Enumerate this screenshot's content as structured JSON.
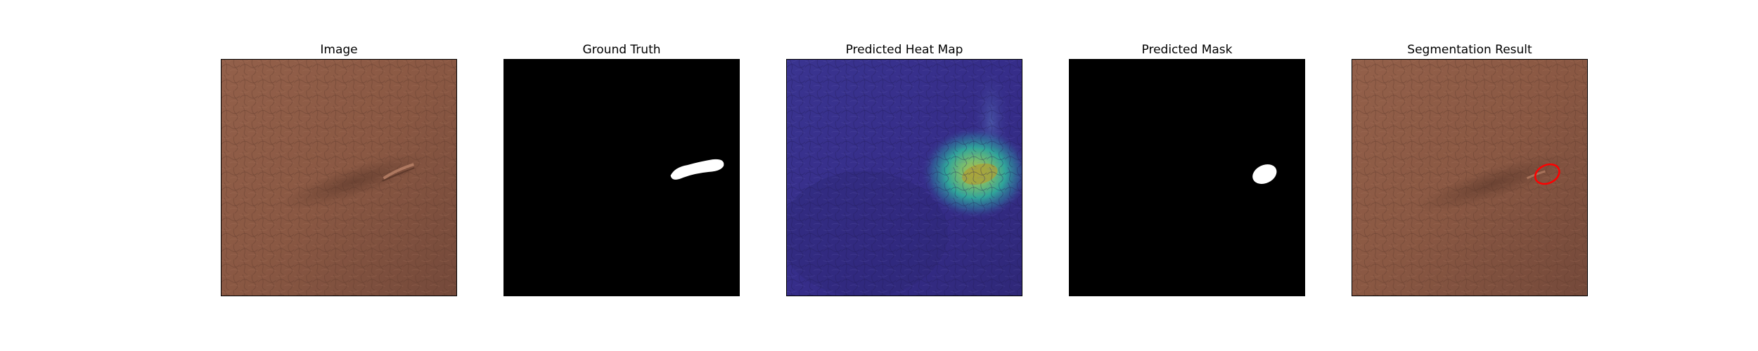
{
  "panels": [
    {
      "title": "Image"
    },
    {
      "title": "Ground Truth"
    },
    {
      "title": "Predicted Heat Map"
    },
    {
      "title": "Predicted Mask"
    },
    {
      "title": "Segmentation Result"
    }
  ],
  "colors": {
    "leather": "#8c5a44",
    "leather_dark": "#6e4535",
    "heat_low": "#3b2f8f",
    "heat_mid": "#2a9d8f",
    "heat_high": "#d4c34a",
    "mask_bg": "#000000",
    "mask_fg": "#ffffff",
    "outline": "#ff0000"
  }
}
